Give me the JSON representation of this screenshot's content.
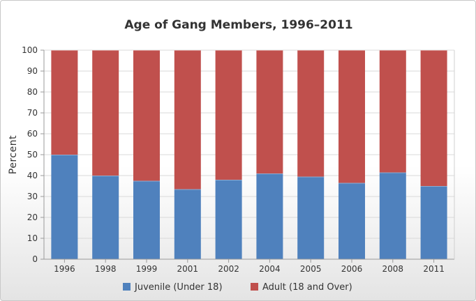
{
  "chart_data": {
    "type": "bar",
    "stacked": true,
    "title": "Age of Gang Members, 1996–2011",
    "xlabel": "",
    "ylabel": "Percent",
    "ylim": [
      0,
      100
    ],
    "yticks": [
      0,
      10,
      20,
      30,
      40,
      50,
      60,
      70,
      80,
      90,
      100
    ],
    "grid": true,
    "legend_position": "bottom",
    "categories": [
      "1996",
      "1998",
      "1999",
      "2001",
      "2002",
      "2004",
      "2005",
      "2006",
      "2008",
      "2011"
    ],
    "series": [
      {
        "name": "Juvenile (Under 18)",
        "color": "#4f81bd",
        "values": [
          50,
          40,
          37.5,
          33.5,
          38,
          41,
          39.5,
          36.5,
          41.5,
          35
        ]
      },
      {
        "name": "Adult (18 and Over)",
        "color": "#c0504d",
        "values": [
          50,
          60,
          62.5,
          66.5,
          62,
          59,
          60.5,
          63.5,
          58.5,
          65
        ]
      }
    ]
  }
}
